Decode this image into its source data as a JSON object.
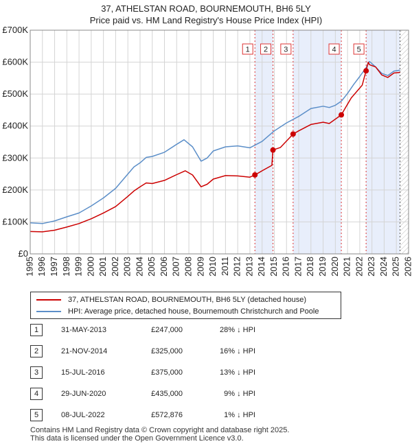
{
  "chart_data": {
    "type": "line",
    "title": "37, ATHELSTAN ROAD, BOURNEMOUTH, BH6 5LY",
    "subtitle": "Price paid vs. HM Land Registry's House Price Index (HPI)",
    "xlabel": "",
    "ylabel": "",
    "xlim": [
      1995,
      2026
    ],
    "ylim": [
      0,
      700000
    ],
    "x_ticks": [
      1995,
      1996,
      1997,
      1998,
      1999,
      2000,
      2001,
      2002,
      2003,
      2004,
      2005,
      2006,
      2007,
      2008,
      2009,
      2010,
      2011,
      2012,
      2013,
      2014,
      2015,
      2016,
      2017,
      2018,
      2019,
      2020,
      2021,
      2022,
      2023,
      2024,
      2025,
      2026
    ],
    "y_ticks": [
      {
        "value": 0,
        "label": "£0"
      },
      {
        "value": 100000,
        "label": "£100K"
      },
      {
        "value": 200000,
        "label": "£200K"
      },
      {
        "value": 300000,
        "label": "£300K"
      },
      {
        "value": 400000,
        "label": "£400K"
      },
      {
        "value": 500000,
        "label": "£500K"
      },
      {
        "value": 600000,
        "label": "£600K"
      },
      {
        "value": 700000,
        "label": "£700K"
      }
    ],
    "grid": true,
    "future_hatch_from": 2025.3,
    "highlight_ranges": [
      [
        2013.41,
        2014.89
      ],
      [
        2016.54,
        2020.49
      ],
      [
        2022.52,
        2025.3
      ]
    ],
    "series": [
      {
        "name": "37, ATHELSTAN ROAD, BOURNEMOUTH, BH6 5LY (detached house)",
        "color": "#cc0000",
        "points": [
          [
            1995,
            70000
          ],
          [
            1996,
            69000
          ],
          [
            1997,
            74000
          ],
          [
            1998,
            84000
          ],
          [
            1999,
            95000
          ],
          [
            2000,
            110000
          ],
          [
            2001,
            128000
          ],
          [
            2002,
            148000
          ],
          [
            2003,
            180000
          ],
          [
            2003.5,
            197000
          ],
          [
            2004,
            210000
          ],
          [
            2004.5,
            222000
          ],
          [
            2005,
            220000
          ],
          [
            2006,
            230000
          ],
          [
            2007,
            248000
          ],
          [
            2007.7,
            260000
          ],
          [
            2008.3,
            247000
          ],
          [
            2009,
            210000
          ],
          [
            2009.5,
            218000
          ],
          [
            2010,
            234000
          ],
          [
            2011,
            245000
          ],
          [
            2012,
            244000
          ],
          [
            2013,
            240000
          ],
          [
            2013.41,
            247000
          ],
          [
            2014,
            260000
          ],
          [
            2014.8,
            277000
          ],
          [
            2014.89,
            325000
          ],
          [
            2015.5,
            333000
          ],
          [
            2016.54,
            375000
          ],
          [
            2017,
            385000
          ],
          [
            2018,
            405000
          ],
          [
            2019,
            412000
          ],
          [
            2019.5,
            408000
          ],
          [
            2020.49,
            435000
          ],
          [
            2020.9,
            462000
          ],
          [
            2021.3,
            488000
          ],
          [
            2021.8,
            510000
          ],
          [
            2022.2,
            528000
          ],
          [
            2022.52,
            572876
          ],
          [
            2022.7,
            600000
          ],
          [
            2022.8,
            592000
          ],
          [
            2023.3,
            585000
          ],
          [
            2023.8,
            560000
          ],
          [
            2024.3,
            552000
          ],
          [
            2024.8,
            566000
          ],
          [
            2025.3,
            568000
          ]
        ]
      },
      {
        "name": "HPI: Average price, detached house, Bournemouth Christchurch and Poole",
        "color": "#5b8ec8",
        "points": [
          [
            1995,
            97000
          ],
          [
            1996,
            95000
          ],
          [
            1997,
            103000
          ],
          [
            1998,
            116000
          ],
          [
            1999,
            128000
          ],
          [
            2000,
            150000
          ],
          [
            2001,
            175000
          ],
          [
            2002,
            205000
          ],
          [
            2003,
            250000
          ],
          [
            2003.5,
            272000
          ],
          [
            2004,
            285000
          ],
          [
            2004.5,
            302000
          ],
          [
            2005,
            305000
          ],
          [
            2006,
            318000
          ],
          [
            2007,
            343000
          ],
          [
            2007.6,
            357000
          ],
          [
            2008.3,
            335000
          ],
          [
            2009,
            290000
          ],
          [
            2009.5,
            300000
          ],
          [
            2010,
            322000
          ],
          [
            2011,
            335000
          ],
          [
            2012,
            338000
          ],
          [
            2013,
            332000
          ],
          [
            2014,
            352000
          ],
          [
            2015,
            385000
          ],
          [
            2016,
            410000
          ],
          [
            2017,
            430000
          ],
          [
            2018,
            455000
          ],
          [
            2019,
            462000
          ],
          [
            2019.5,
            458000
          ],
          [
            2020,
            465000
          ],
          [
            2020.5,
            478000
          ],
          [
            2021,
            502000
          ],
          [
            2021.5,
            530000
          ],
          [
            2022,
            555000
          ],
          [
            2022.5,
            582000
          ],
          [
            2022.8,
            602000
          ],
          [
            2023.3,
            585000
          ],
          [
            2023.8,
            565000
          ],
          [
            2024.3,
            558000
          ],
          [
            2024.8,
            572000
          ],
          [
            2025.3,
            575000
          ]
        ]
      }
    ],
    "sales": [
      {
        "num": "1",
        "x": 2013.41,
        "y": 247000
      },
      {
        "num": "2",
        "x": 2014.89,
        "y": 325000
      },
      {
        "num": "3",
        "x": 2016.54,
        "y": 375000
      },
      {
        "num": "4",
        "x": 2020.49,
        "y": 435000
      },
      {
        "num": "5",
        "x": 2022.52,
        "y": 572876
      }
    ],
    "legend": {
      "items": [
        {
          "label": "37, ATHELSTAN ROAD, BOURNEMOUTH, BH6 5LY (detached house)",
          "color": "#cc0000"
        },
        {
          "label": "HPI: Average price, detached house, Bournemouth Christchurch and Poole",
          "color": "#5b8ec8"
        }
      ]
    }
  },
  "sales_table": [
    {
      "num": "1",
      "date": "31-MAY-2013",
      "price": "£247,000",
      "hpi": "28% ↓ HPI"
    },
    {
      "num": "2",
      "date": "21-NOV-2014",
      "price": "£325,000",
      "hpi": "16% ↓ HPI"
    },
    {
      "num": "3",
      "date": "15-JUL-2016",
      "price": "£375,000",
      "hpi": "13% ↓ HPI"
    },
    {
      "num": "4",
      "date": "29-JUN-2020",
      "price": "£435,000",
      "hpi": "9% ↓ HPI"
    },
    {
      "num": "5",
      "date": "08-JUL-2022",
      "price": "£572,876",
      "hpi": "1% ↓ HPI"
    }
  ],
  "footer": {
    "line1": "Contains HM Land Registry data © Crown copyright and database right 2025.",
    "line2": "This data is licensed under the Open Government Licence v3.0."
  }
}
